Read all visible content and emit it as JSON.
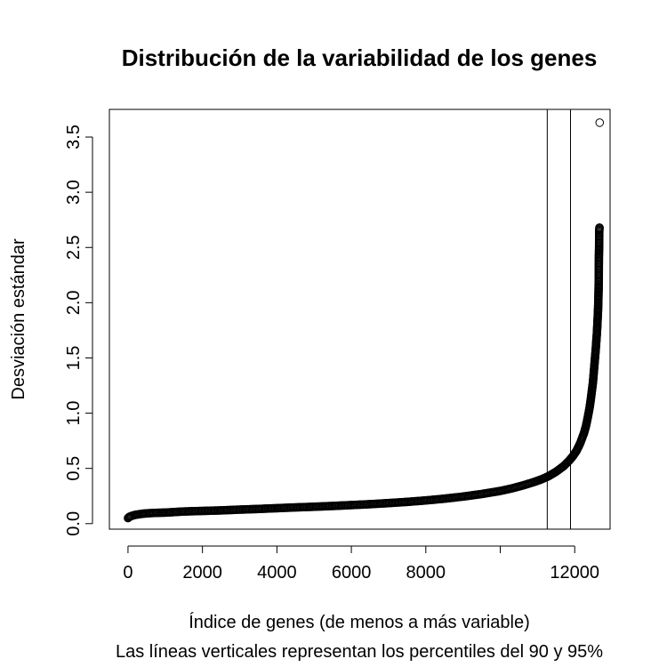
{
  "chart_data": {
    "type": "scatter",
    "title": "Distribución de la variabilidad de los genes",
    "xlabel": "Índice de genes (de menos a más variable)",
    "subtitle": "Las líneas verticales representan los percentiles del 90 y 95%",
    "ylabel": "Desviación estándar",
    "xlim": [
      -500,
      12950
    ],
    "ylim": [
      -0.05,
      3.75
    ],
    "x_ticks": [
      0,
      2000,
      4000,
      6000,
      8000,
      10000,
      12000
    ],
    "x_tick_labels": [
      "0",
      "2000",
      "4000",
      "6000",
      "8000",
      "",
      "12000"
    ],
    "y_ticks": [
      0.0,
      0.5,
      1.0,
      1.5,
      2.0,
      2.5,
      3.0,
      3.5
    ],
    "y_tick_labels": [
      "0.0",
      "0.5",
      "1.0",
      "1.5",
      "2.0",
      "2.5",
      "3.0",
      "3.5"
    ],
    "vertical_lines": [
      11262,
      11887
    ],
    "series": [
      {
        "marker": "open-circle",
        "points": [
          [
            0,
            0.05
          ],
          [
            30,
            0.06
          ],
          [
            60,
            0.065
          ],
          [
            100,
            0.07
          ],
          [
            150,
            0.075
          ],
          [
            200,
            0.08
          ],
          [
            300,
            0.085
          ],
          [
            400,
            0.09
          ],
          [
            500,
            0.093
          ],
          [
            700,
            0.097
          ],
          [
            1000,
            0.1
          ],
          [
            1500,
            0.11
          ],
          [
            2000,
            0.115
          ],
          [
            2500,
            0.12
          ],
          [
            3000,
            0.127
          ],
          [
            3500,
            0.133
          ],
          [
            4000,
            0.14
          ],
          [
            4500,
            0.147
          ],
          [
            5000,
            0.153
          ],
          [
            5500,
            0.16
          ],
          [
            6000,
            0.168
          ],
          [
            6500,
            0.176
          ],
          [
            7000,
            0.186
          ],
          [
            7500,
            0.197
          ],
          [
            8000,
            0.21
          ],
          [
            8500,
            0.226
          ],
          [
            9000,
            0.245
          ],
          [
            9500,
            0.268
          ],
          [
            10000,
            0.296
          ],
          [
            10300,
            0.318
          ],
          [
            10600,
            0.345
          ],
          [
            10900,
            0.376
          ],
          [
            11100,
            0.4
          ],
          [
            11300,
            0.43
          ],
          [
            11500,
            0.47
          ],
          [
            11700,
            0.52
          ],
          [
            11850,
            0.57
          ],
          [
            11950,
            0.61
          ],
          [
            12050,
            0.66
          ],
          [
            12150,
            0.73
          ],
          [
            12250,
            0.82
          ],
          [
            12300,
            0.88
          ],
          [
            12350,
            0.96
          ],
          [
            12400,
            1.05
          ],
          [
            12430,
            1.12
          ],
          [
            12460,
            1.2
          ],
          [
            12490,
            1.28
          ],
          [
            12510,
            1.36
          ],
          [
            12530,
            1.44
          ],
          [
            12550,
            1.52
          ],
          [
            12565,
            1.58
          ],
          [
            12580,
            1.65
          ],
          [
            12595,
            1.72
          ],
          [
            12605,
            1.78
          ],
          [
            12615,
            1.85
          ],
          [
            12625,
            1.92
          ],
          [
            12633,
            2.0
          ],
          [
            12640,
            2.1
          ],
          [
            12645,
            2.2
          ],
          [
            12650,
            2.42
          ],
          [
            12655,
            2.5
          ],
          [
            12660,
            2.65
          ],
          [
            12665,
            2.68
          ],
          [
            12670,
            3.63
          ]
        ]
      }
    ]
  }
}
